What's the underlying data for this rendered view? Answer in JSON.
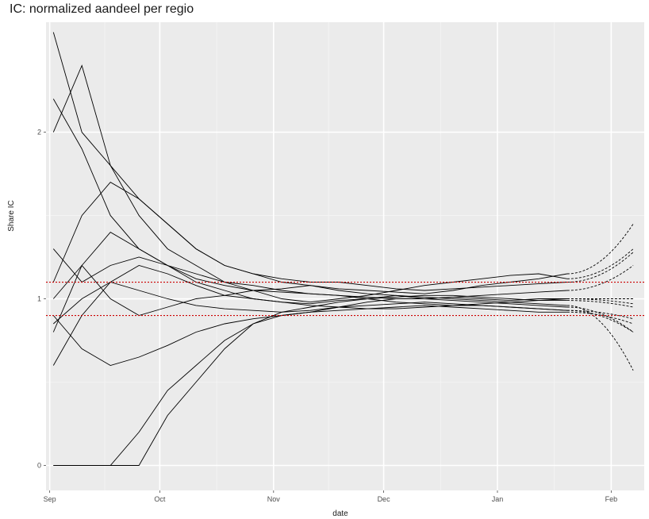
{
  "chart_data": {
    "type": "line",
    "title": "IC: normalized aandeel per regio",
    "xlabel": "date",
    "ylabel": "Share IC",
    "x_ticks": [
      "Sep",
      "Oct",
      "Nov",
      "Dec",
      "Jan",
      "Feb"
    ],
    "y_ticks": [
      0,
      1,
      2
    ],
    "xlim": [
      "2020-08-31",
      "2021-02-10"
    ],
    "ylim": [
      -0.15,
      2.66
    ],
    "grid": true,
    "panel_background": "#ebebeb",
    "reference_lines": [
      {
        "y": 1.1,
        "color": "#cc0000",
        "style": "dotted"
      },
      {
        "y": 0.9,
        "color": "#cc0000",
        "style": "dotted"
      }
    ],
    "observed_end": "2021-01-20",
    "forecast_end": "2021-02-07",
    "series": [
      {
        "values": [
          2.6,
          2.0,
          1.8,
          1.6,
          1.45,
          1.3,
          1.2,
          1.15,
          1.1,
          1.08,
          1.06,
          1.05,
          1.04,
          1.03,
          1.05,
          1.08,
          1.1,
          1.12,
          1.15
        ],
        "forecast_end": 1.45
      },
      {
        "values": [
          2.0,
          2.4,
          1.8,
          1.5,
          1.3,
          1.2,
          1.1,
          1.05,
          1.0,
          0.98,
          1.0,
          1.02,
          1.05,
          1.08,
          1.1,
          1.12,
          1.14,
          1.15,
          1.12
        ],
        "forecast_end": 1.3
      },
      {
        "values": [
          0.0,
          0.0,
          0.0,
          0.0,
          0.3,
          0.5,
          0.7,
          0.85,
          0.92,
          0.95,
          0.98,
          1.0,
          1.02,
          1.01,
          1.0,
          0.99,
          0.98,
          0.97,
          0.96
        ],
        "forecast_end": 0.57
      },
      {
        "values": [
          0.0,
          0.0,
          0.0,
          0.2,
          0.45,
          0.6,
          0.75,
          0.85,
          0.9,
          0.92,
          0.95,
          0.98,
          1.0,
          1.0,
          0.99,
          0.98,
          0.97,
          0.96,
          0.95
        ],
        "forecast_end": 0.8
      },
      {
        "values": [
          0.8,
          1.2,
          1.0,
          0.9,
          0.95,
          1.0,
          1.02,
          1.05,
          1.06,
          1.08,
          1.05,
          1.03,
          1.02,
          1.0,
          1.01,
          1.02,
          1.03,
          1.04,
          1.05
        ],
        "forecast_end": 1.2
      },
      {
        "values": [
          1.3,
          1.1,
          1.2,
          1.25,
          1.2,
          1.15,
          1.1,
          1.08,
          1.05,
          1.03,
          1.02,
          1.0,
          0.98,
          0.97,
          0.96,
          0.97,
          0.98,
          0.99,
          1.0
        ],
        "forecast_end": 0.97
      },
      {
        "values": [
          0.9,
          0.7,
          0.6,
          0.65,
          0.72,
          0.8,
          0.85,
          0.88,
          0.9,
          0.92,
          0.93,
          0.94,
          0.95,
          0.96,
          0.95,
          0.94,
          0.93,
          0.92,
          0.92
        ],
        "forecast_end": 0.85
      },
      {
        "values": [
          1.0,
          1.2,
          1.4,
          1.3,
          1.2,
          1.12,
          1.08,
          1.05,
          1.04,
          1.03,
          1.02,
          1.01,
          1.0,
          1.0,
          1.01,
          1.0,
          0.99,
          1.0,
          1.0
        ],
        "forecast_end": 1.0
      },
      {
        "values": [
          0.85,
          1.0,
          1.1,
          1.05,
          1.0,
          0.96,
          0.94,
          0.93,
          0.92,
          0.93,
          0.95,
          0.96,
          0.97,
          0.98,
          0.97,
          0.96,
          0.95,
          0.94,
          0.93
        ],
        "forecast_end": 0.8
      },
      {
        "values": [
          1.1,
          1.5,
          1.7,
          1.6,
          1.45,
          1.3,
          1.2,
          1.15,
          1.12,
          1.1,
          1.1,
          1.08,
          1.06,
          1.05,
          1.06,
          1.07,
          1.08,
          1.09,
          1.1
        ],
        "forecast_end": 1.28
      },
      {
        "values": [
          0.6,
          0.9,
          1.1,
          1.2,
          1.15,
          1.08,
          1.02,
          1.0,
          0.98,
          0.97,
          0.99,
          1.0,
          1.01,
          1.02,
          1.02,
          1.01,
          1.0,
          0.99,
          0.99
        ],
        "forecast_end": 0.95
      },
      {
        "values": [
          2.2,
          1.9,
          1.5,
          1.3,
          1.2,
          1.1,
          1.05,
          1.0,
          0.98,
          0.96,
          0.95,
          0.94,
          0.94,
          0.95,
          0.96,
          0.96,
          0.95,
          0.94,
          0.93
        ],
        "forecast_end": 0.88
      }
    ]
  }
}
